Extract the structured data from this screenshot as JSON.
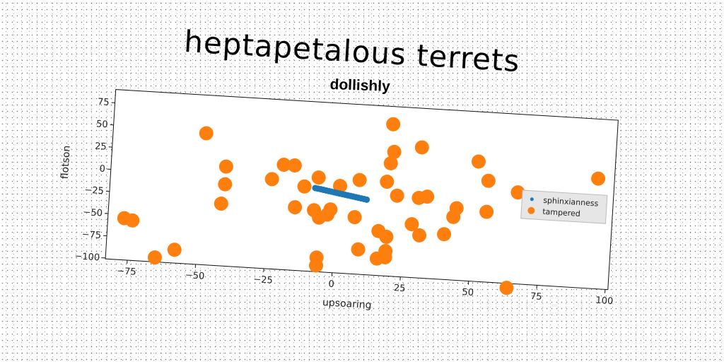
{
  "chart_data": {
    "type": "scatter",
    "title": "heptapetalous terrets",
    "subtitle": "dollishly",
    "xlabel": "upsoaring",
    "ylabel": "flotson",
    "xlim": [
      -83,
      101
    ],
    "ylim": [
      -101,
      90
    ],
    "xticks": [
      -75,
      -50,
      -25,
      0,
      25,
      50,
      75,
      100
    ],
    "yticks": [
      75,
      50,
      25,
      0,
      -25,
      -50,
      -75,
      -100
    ],
    "grid": false,
    "legend_position": "right",
    "colors": {
      "sphinxianness": "#1f77b4",
      "tampered": "#ff7f0e"
    },
    "series": [
      {
        "name": "sphinxianness",
        "marker_size": "small",
        "points": [
          [
            -8,
            -7
          ],
          [
            -7,
            -7.5
          ],
          [
            -6,
            -8
          ],
          [
            -5,
            -8.5
          ],
          [
            -4,
            -9
          ],
          [
            -3,
            -9.5
          ],
          [
            -2,
            -10
          ],
          [
            -1,
            -10.5
          ],
          [
            0,
            -11
          ],
          [
            1,
            -11.5
          ],
          [
            2,
            -12
          ],
          [
            3,
            -12.5
          ],
          [
            4,
            -13
          ],
          [
            5,
            -13.5
          ],
          [
            6,
            -14
          ],
          [
            7,
            -14.5
          ],
          [
            8,
            -15
          ],
          [
            9,
            -15.5
          ],
          [
            10,
            -16
          ],
          [
            11,
            -16.5
          ]
        ]
      },
      {
        "name": "tampered",
        "marker_size": "large",
        "points": [
          [
            19,
            70
          ],
          [
            -49,
            47
          ],
          [
            30,
            46
          ],
          [
            20,
            39
          ],
          [
            51,
            34
          ],
          [
            19,
            26
          ],
          [
            95,
            23
          ],
          [
            -20,
            17
          ],
          [
            -16,
            17
          ],
          [
            55,
            13
          ],
          [
            -41,
            11
          ],
          [
            -7,
            5
          ],
          [
            8,
            5
          ],
          [
            18,
            5
          ],
          [
            66,
            2
          ],
          [
            -24,
            0
          ],
          [
            1,
            -3
          ],
          [
            -12,
            -6
          ],
          [
            -41,
            -9
          ],
          [
            22,
            -10
          ],
          [
            33,
            -9
          ],
          [
            30,
            -11
          ],
          [
            44,
            -20
          ],
          [
            55,
            -22
          ],
          [
            43,
            -30
          ],
          [
            -42,
            -31
          ],
          [
            -15,
            -30
          ],
          [
            -8,
            -32
          ],
          [
            -2,
            -30
          ],
          [
            -3,
            -36
          ],
          [
            -6,
            -40
          ],
          [
            7,
            -37
          ],
          [
            28,
            -41
          ],
          [
            31,
            -53
          ],
          [
            40,
            -50
          ],
          [
            16,
            -51
          ],
          [
            19,
            -57
          ],
          [
            -77,
            -54
          ],
          [
            -74,
            -56
          ],
          [
            9,
            -73
          ],
          [
            19,
            -73
          ],
          [
            19,
            -80
          ],
          [
            -58,
            -86
          ],
          [
            -6,
            -85
          ],
          [
            16,
            -82
          ],
          [
            -65,
            -96
          ],
          [
            -6,
            -94
          ],
          [
            64,
            -106
          ]
        ]
      }
    ]
  }
}
